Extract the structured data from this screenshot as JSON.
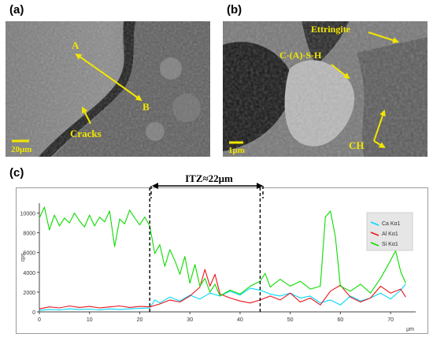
{
  "panels": {
    "a": {
      "label": "(a)",
      "annotations": {
        "point_a": "A",
        "point_b": "B",
        "cracks": "Cracks"
      },
      "scale_bar": "20μm"
    },
    "b": {
      "label": "(b)",
      "annotations": {
        "ettringite": "Ettringite",
        "csh": "C-(A)-S-H",
        "ch": "CH"
      },
      "scale_bar": "1μm"
    },
    "c": {
      "label": "(c)",
      "itz_label": "ITZ≈22μm"
    }
  },
  "colors": {
    "annotation": "#f2e600",
    "ca": "#00d8ff",
    "al": "#e8141c",
    "si": "#0cdc00"
  },
  "chart_data": {
    "type": "line",
    "xlabel": "μm",
    "ylabel": "cps",
    "xlim": [
      0,
      75
    ],
    "ylim": [
      0,
      11000
    ],
    "xticks": [
      0,
      10,
      20,
      30,
      40,
      50,
      60,
      70
    ],
    "yticks": [
      0,
      2000,
      4000,
      6000,
      8000,
      10000
    ],
    "itz_bounds": [
      22,
      44
    ],
    "legend_position": "top-right",
    "series": [
      {
        "name": "Ca Kα1",
        "color": "#00d8ff",
        "points": [
          [
            0,
            150
          ],
          [
            2,
            250
          ],
          [
            4,
            200
          ],
          [
            6,
            300
          ],
          [
            8,
            250
          ],
          [
            10,
            280
          ],
          [
            12,
            200
          ],
          [
            14,
            300
          ],
          [
            16,
            250
          ],
          [
            18,
            300
          ],
          [
            20,
            350
          ],
          [
            22,
            400
          ],
          [
            23,
            1200
          ],
          [
            24,
            900
          ],
          [
            26,
            1500
          ],
          [
            28,
            1100
          ],
          [
            30,
            1700
          ],
          [
            32,
            1300
          ],
          [
            34,
            1900
          ],
          [
            36,
            1600
          ],
          [
            38,
            2100
          ],
          [
            40,
            1700
          ],
          [
            42,
            2400
          ],
          [
            44,
            2200
          ],
          [
            46,
            1800
          ],
          [
            48,
            1600
          ],
          [
            50,
            1900
          ],
          [
            52,
            1400
          ],
          [
            54,
            1600
          ],
          [
            56,
            900
          ],
          [
            58,
            1200
          ],
          [
            60,
            700
          ],
          [
            62,
            1600
          ],
          [
            64,
            1100
          ],
          [
            66,
            1400
          ],
          [
            68,
            1900
          ],
          [
            70,
            1300
          ],
          [
            72,
            2200
          ],
          [
            73,
            2800
          ]
        ]
      },
      {
        "name": "Al Kα1",
        "color": "#e8141c",
        "points": [
          [
            0,
            300
          ],
          [
            2,
            500
          ],
          [
            4,
            400
          ],
          [
            6,
            600
          ],
          [
            8,
            450
          ],
          [
            10,
            550
          ],
          [
            12,
            400
          ],
          [
            14,
            500
          ],
          [
            16,
            600
          ],
          [
            18,
            450
          ],
          [
            20,
            550
          ],
          [
            22,
            500
          ],
          [
            24,
            800
          ],
          [
            26,
            1200
          ],
          [
            28,
            1000
          ],
          [
            30,
            1600
          ],
          [
            32,
            2500
          ],
          [
            33,
            4300
          ],
          [
            34,
            2600
          ],
          [
            35,
            3800
          ],
          [
            36,
            1800
          ],
          [
            38,
            1400
          ],
          [
            40,
            1100
          ],
          [
            42,
            900
          ],
          [
            44,
            1200
          ],
          [
            46,
            1600
          ],
          [
            48,
            1200
          ],
          [
            50,
            1900
          ],
          [
            52,
            1000
          ],
          [
            54,
            1400
          ],
          [
            56,
            700
          ],
          [
            58,
            2100
          ],
          [
            60,
            2700
          ],
          [
            62,
            1500
          ],
          [
            64,
            1000
          ],
          [
            66,
            1400
          ],
          [
            68,
            2600
          ],
          [
            70,
            1900
          ],
          [
            72,
            2300
          ],
          [
            73,
            1500
          ]
        ]
      },
      {
        "name": "Si Kα1",
        "color": "#0cdc00",
        "points": [
          [
            0,
            9500
          ],
          [
            1,
            10600
          ],
          [
            2,
            8300
          ],
          [
            3,
            9800
          ],
          [
            4,
            8700
          ],
          [
            5,
            9500
          ],
          [
            6,
            9000
          ],
          [
            7,
            10000
          ],
          [
            8,
            9200
          ],
          [
            9,
            8600
          ],
          [
            10,
            9800
          ],
          [
            11,
            8700
          ],
          [
            12,
            9600
          ],
          [
            13,
            9100
          ],
          [
            14,
            10200
          ],
          [
            15,
            6600
          ],
          [
            16,
            9400
          ],
          [
            17,
            8900
          ],
          [
            18,
            10300
          ],
          [
            19,
            9500
          ],
          [
            20,
            8800
          ],
          [
            21,
            9600
          ],
          [
            22,
            8700
          ],
          [
            23,
            5900
          ],
          [
            24,
            6800
          ],
          [
            25,
            4600
          ],
          [
            26,
            6300
          ],
          [
            27,
            5200
          ],
          [
            28,
            3800
          ],
          [
            29,
            5600
          ],
          [
            30,
            2900
          ],
          [
            31,
            4800
          ],
          [
            32,
            2600
          ],
          [
            33,
            3400
          ],
          [
            34,
            2000
          ],
          [
            35,
            2800
          ],
          [
            36,
            1600
          ],
          [
            38,
            2200
          ],
          [
            40,
            1800
          ],
          [
            42,
            2600
          ],
          [
            44,
            3100
          ],
          [
            45,
            3900
          ],
          [
            46,
            2500
          ],
          [
            48,
            3300
          ],
          [
            50,
            2600
          ],
          [
            52,
            3100
          ],
          [
            54,
            2300
          ],
          [
            56,
            2600
          ],
          [
            57,
            9600
          ],
          [
            58,
            10200
          ],
          [
            59,
            7600
          ],
          [
            60,
            2600
          ],
          [
            62,
            2100
          ],
          [
            64,
            2800
          ],
          [
            66,
            1900
          ],
          [
            68,
            3400
          ],
          [
            70,
            5200
          ],
          [
            71,
            6200
          ],
          [
            72,
            4100
          ],
          [
            73,
            2900
          ]
        ]
      }
    ]
  }
}
